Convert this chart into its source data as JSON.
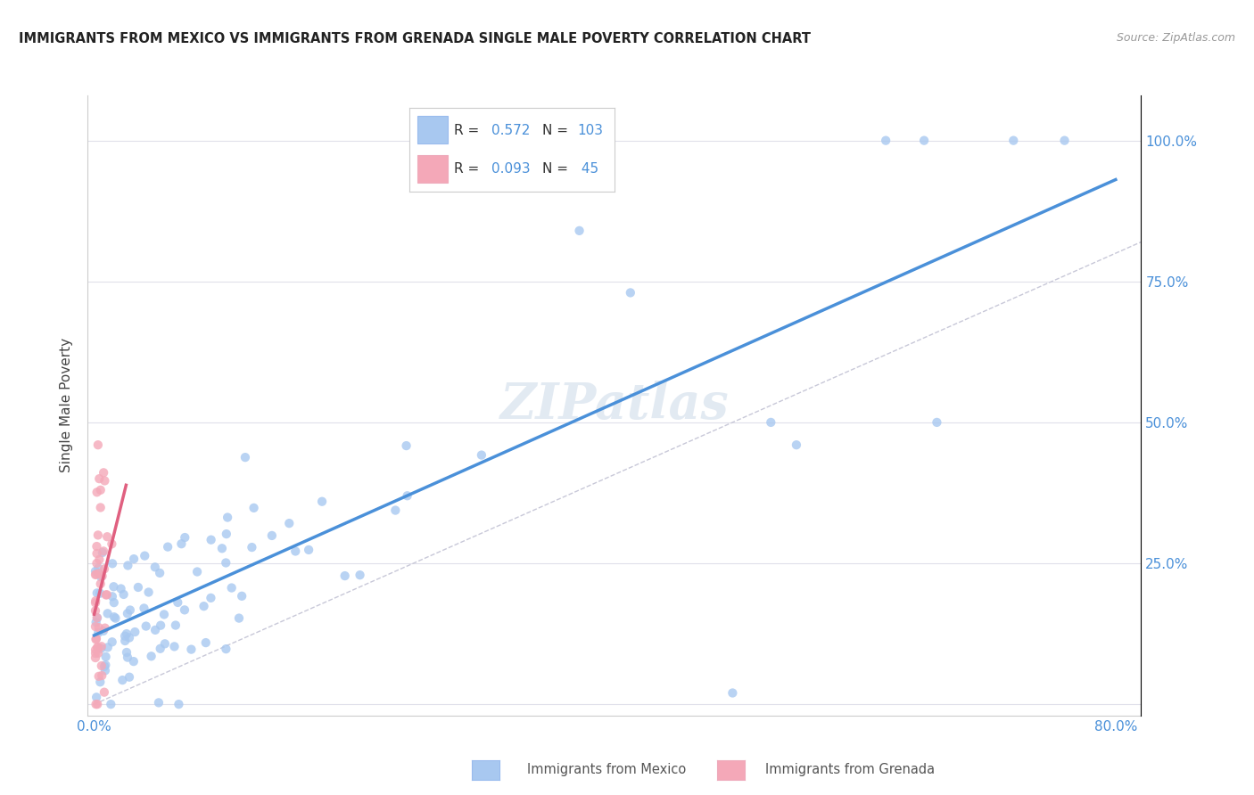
{
  "title": "IMMIGRANTS FROM MEXICO VS IMMIGRANTS FROM GRENADA SINGLE MALE POVERTY CORRELATION CHART",
  "source": "Source: ZipAtlas.com",
  "ylabel": "Single Male Poverty",
  "color_mexico": "#a8c8f0",
  "color_grenada": "#f4a8b8",
  "color_line_mexico": "#4a90d9",
  "color_line_grenada": "#e06080",
  "color_diag": "#c8c8d8",
  "color_right_axis": "#4a90d9",
  "background_color": "#ffffff",
  "grid_color": "#e0e0ea",
  "watermark": "ZIPatlas",
  "legend_r1": "0.572",
  "legend_n1": "103",
  "legend_r2": "0.093",
  "legend_n2": " 45",
  "ytick_positions": [
    0.0,
    0.25,
    0.5,
    0.75,
    1.0
  ],
  "ytick_labels": [
    "",
    "25.0%",
    "50.0%",
    "75.0%",
    "100.0%"
  ],
  "xtick_positions": [
    0.0,
    0.1,
    0.2,
    0.3,
    0.4,
    0.5,
    0.6,
    0.7,
    0.8
  ],
  "xtick_labels": [
    "0.0%",
    "",
    "",
    "",
    "",
    "",
    "",
    "",
    "80.0%"
  ]
}
